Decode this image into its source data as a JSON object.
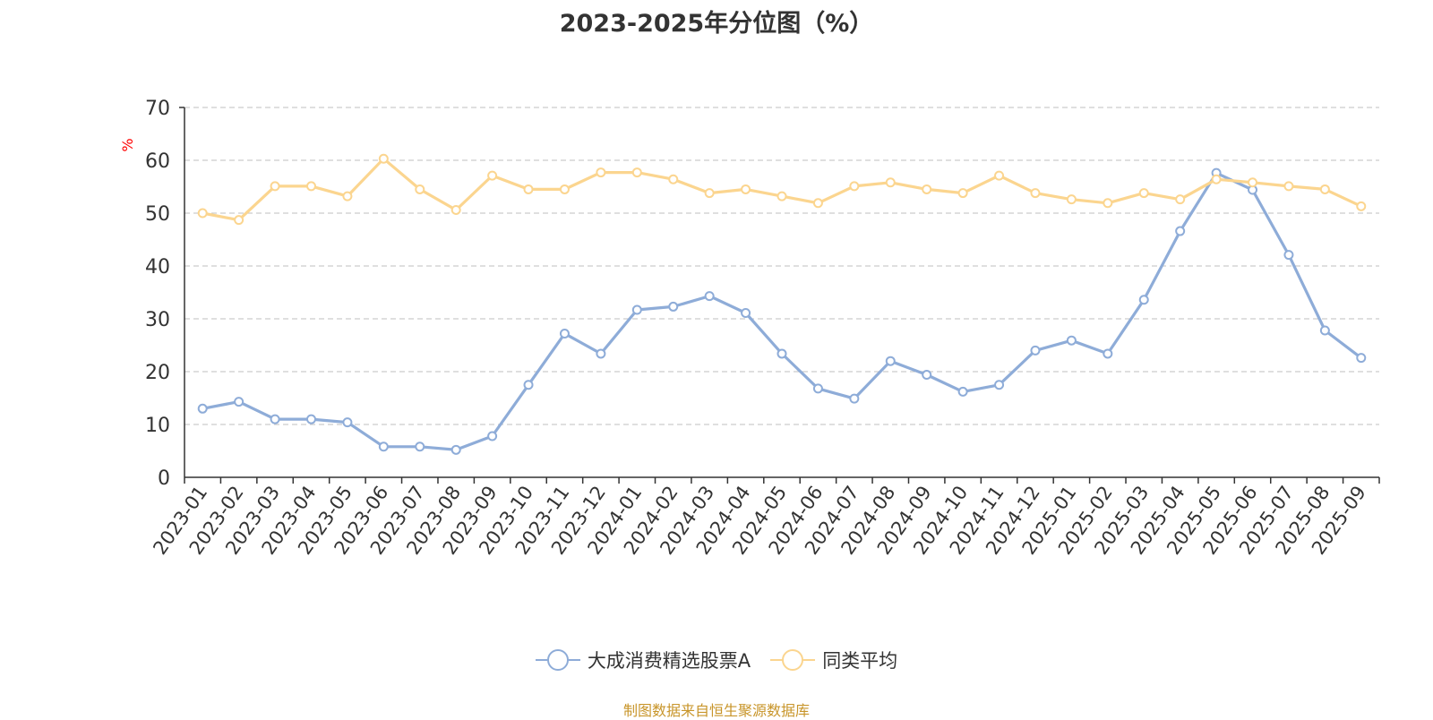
{
  "chart_data": {
    "type": "line",
    "title": "2023-2025年分位图（%）",
    "ylabel": "%",
    "xlabel": "",
    "ylim": [
      0,
      70
    ],
    "yticks": [
      0,
      10,
      20,
      30,
      40,
      50,
      60,
      70
    ],
    "grid": true,
    "legend_position": "bottom",
    "categories": [
      "2023-01",
      "2023-02",
      "2023-03",
      "2023-04",
      "2023-05",
      "2023-06",
      "2023-07",
      "2023-08",
      "2023-09",
      "2023-10",
      "2023-11",
      "2023-12",
      "2024-01",
      "2024-02",
      "2024-03",
      "2024-04",
      "2024-05",
      "2024-06",
      "2024-07",
      "2024-08",
      "2024-09",
      "2024-10",
      "2024-11",
      "2024-12",
      "2025-01",
      "2025-02",
      "2025-03",
      "2025-04",
      "2025-05",
      "2025-06",
      "2025-07",
      "2025-08",
      "2025-09"
    ],
    "series": [
      {
        "name": "大成消费精选股票A",
        "color": "#8eacd8",
        "values": [
          13.0,
          14.3,
          11.0,
          11.0,
          10.4,
          5.8,
          5.8,
          5.2,
          7.8,
          17.5,
          27.2,
          23.4,
          31.7,
          32.3,
          34.3,
          31.1,
          23.4,
          16.8,
          14.9,
          22.0,
          19.4,
          16.2,
          17.5,
          24.0,
          25.9,
          23.4,
          33.6,
          46.6,
          57.6,
          54.4,
          42.1,
          27.8,
          22.6
        ]
      },
      {
        "name": "同类平均",
        "color": "#fbd58f",
        "values": [
          50.0,
          48.7,
          55.1,
          55.1,
          53.2,
          60.3,
          54.5,
          50.6,
          57.1,
          54.5,
          54.5,
          57.7,
          57.7,
          56.4,
          53.8,
          54.5,
          53.2,
          51.9,
          55.1,
          55.8,
          54.5,
          53.8,
          57.1,
          53.8,
          52.6,
          51.9,
          53.8,
          52.6,
          56.4,
          55.8,
          55.1,
          54.5,
          51.3
        ]
      }
    ]
  },
  "legend": {
    "items": [
      {
        "label": "大成消费精选股票A",
        "color": "#8eacd8"
      },
      {
        "label": "同类平均",
        "color": "#fbd58f"
      }
    ]
  },
  "source_note": "制图数据来自恒生聚源数据库",
  "colors": {
    "axis": "#333333",
    "grid": "#cccccc",
    "ylabel": "#ff0000",
    "source": "#c8952a"
  }
}
